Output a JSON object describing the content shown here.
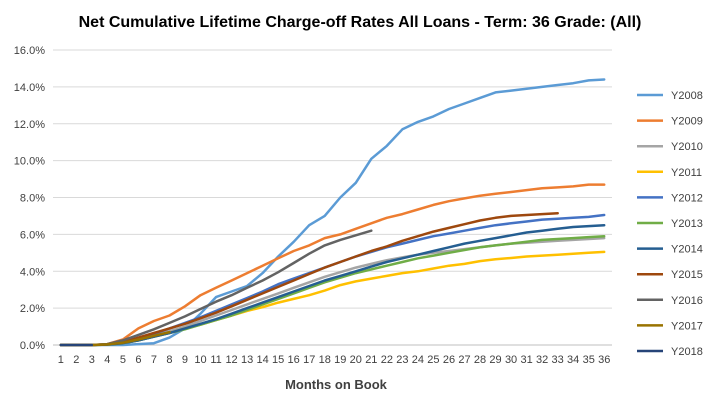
{
  "chart_data": {
    "type": "line",
    "title": "Net Cumulative Lifetime Charge-off Rates All Loans - Term: 36 Grade: (All)",
    "xlabel": "Months on Book",
    "ylabel": "",
    "x": [
      1,
      2,
      3,
      4,
      5,
      6,
      7,
      8,
      9,
      10,
      11,
      12,
      13,
      14,
      15,
      16,
      17,
      18,
      19,
      20,
      21,
      22,
      23,
      24,
      25,
      26,
      27,
      28,
      29,
      30,
      31,
      32,
      33,
      34,
      35,
      36
    ],
    "ylim": [
      0,
      16
    ],
    "yticks": [
      "0.0%",
      "2.0%",
      "4.0%",
      "6.0%",
      "8.0%",
      "10.0%",
      "12.0%",
      "14.0%",
      "16.0%"
    ],
    "grid": "horizontal",
    "legend_position": "right",
    "series": [
      {
        "name": "Y2008",
        "color": "#5b9bd5",
        "values": [
          0,
          0,
          0,
          0,
          0,
          0.05,
          0.1,
          0.4,
          0.9,
          1.7,
          2.6,
          2.9,
          3.2,
          3.9,
          4.8,
          5.6,
          6.5,
          7.0,
          8.0,
          8.8,
          10.1,
          10.8,
          11.7,
          12.1,
          12.4,
          12.8,
          13.1,
          13.4,
          13.7,
          13.8,
          13.9,
          14.0,
          14.1,
          14.2,
          14.35,
          14.4
        ]
      },
      {
        "name": "Y2009",
        "color": "#ed7d31",
        "values": [
          0,
          0,
          0,
          0.05,
          0.3,
          0.9,
          1.3,
          1.6,
          2.1,
          2.7,
          3.1,
          3.5,
          3.9,
          4.3,
          4.7,
          5.1,
          5.4,
          5.8,
          6.0,
          6.3,
          6.6,
          6.9,
          7.1,
          7.35,
          7.6,
          7.8,
          7.95,
          8.1,
          8.2,
          8.3,
          8.4,
          8.5,
          8.55,
          8.6,
          8.7,
          8.7
        ]
      },
      {
        "name": "Y2010",
        "color": "#a5a5a5",
        "values": [
          0,
          0,
          0,
          0.03,
          0.12,
          0.3,
          0.5,
          0.75,
          1.0,
          1.3,
          1.6,
          1.9,
          2.2,
          2.5,
          2.8,
          3.1,
          3.4,
          3.7,
          3.95,
          4.2,
          4.4,
          4.6,
          4.75,
          4.9,
          5.0,
          5.1,
          5.2,
          5.3,
          5.4,
          5.5,
          5.55,
          5.6,
          5.65,
          5.7,
          5.75,
          5.8
        ]
      },
      {
        "name": "Y2011",
        "color": "#ffc000",
        "values": [
          0,
          0,
          0,
          0.02,
          0.1,
          0.25,
          0.45,
          0.65,
          0.9,
          1.1,
          1.35,
          1.6,
          1.85,
          2.05,
          2.3,
          2.5,
          2.7,
          2.95,
          3.25,
          3.45,
          3.6,
          3.75,
          3.9,
          4.0,
          4.15,
          4.3,
          4.4,
          4.55,
          4.65,
          4.72,
          4.8,
          4.85,
          4.9,
          4.95,
          5.0,
          5.05
        ]
      },
      {
        "name": "Y2012",
        "color": "#4472c4",
        "values": [
          0,
          0,
          0,
          0.03,
          0.15,
          0.35,
          0.6,
          0.9,
          1.2,
          1.5,
          1.85,
          2.2,
          2.55,
          2.9,
          3.3,
          3.6,
          3.9,
          4.2,
          4.5,
          4.8,
          5.05,
          5.3,
          5.5,
          5.7,
          5.9,
          6.05,
          6.2,
          6.35,
          6.5,
          6.6,
          6.7,
          6.8,
          6.85,
          6.9,
          6.95,
          7.05
        ]
      },
      {
        "name": "Y2013",
        "color": "#70ad47",
        "values": [
          0,
          0,
          0,
          0.02,
          0.1,
          0.25,
          0.45,
          0.65,
          0.85,
          1.1,
          1.35,
          1.6,
          1.9,
          2.2,
          2.5,
          2.8,
          3.1,
          3.4,
          3.65,
          3.9,
          4.1,
          4.3,
          4.5,
          4.7,
          4.85,
          5.0,
          5.15,
          5.3,
          5.4,
          5.5,
          5.6,
          5.7,
          5.75,
          5.8,
          5.85,
          5.9
        ]
      },
      {
        "name": "Y2014",
        "color": "#255e91",
        "values": [
          0,
          0,
          0,
          0.02,
          0.1,
          0.25,
          0.45,
          0.65,
          0.9,
          1.15,
          1.4,
          1.7,
          2.0,
          2.3,
          2.6,
          2.9,
          3.2,
          3.5,
          3.75,
          4.0,
          4.25,
          4.5,
          4.7,
          4.9,
          5.1,
          5.3,
          5.5,
          5.65,
          5.8,
          5.95,
          6.1,
          6.2,
          6.3,
          6.4,
          6.45,
          6.5
        ]
      },
      {
        "name": "Y2015",
        "color": "#9e480e",
        "values": [
          0,
          0,
          0,
          0.03,
          0.15,
          0.4,
          0.65,
          0.9,
          1.15,
          1.45,
          1.75,
          2.1,
          2.45,
          2.8,
          3.15,
          3.5,
          3.85,
          4.2,
          4.5,
          4.8,
          5.1,
          5.35,
          5.65,
          5.9,
          6.15,
          6.35,
          6.55,
          6.75,
          6.9,
          7.0,
          7.05,
          7.1,
          7.15,
          null,
          null,
          null
        ]
      },
      {
        "name": "Y2016",
        "color": "#636363",
        "values": [
          0,
          0,
          0,
          0.05,
          0.25,
          0.55,
          0.85,
          1.2,
          1.55,
          1.95,
          2.35,
          2.7,
          3.1,
          3.5,
          3.95,
          4.45,
          4.95,
          5.4,
          5.7,
          5.95,
          6.2,
          null,
          null,
          null,
          null,
          null,
          null,
          null,
          null,
          null,
          null,
          null,
          null,
          null,
          null,
          null
        ]
      },
      {
        "name": "Y2017",
        "color": "#997300",
        "values": [
          0,
          0,
          0,
          0.03,
          0.12,
          0.3,
          0.5,
          0.7,
          null,
          null,
          null,
          null,
          null,
          null,
          null,
          null,
          null,
          null,
          null,
          null,
          null,
          null,
          null,
          null,
          null,
          null,
          null,
          null,
          null,
          null,
          null,
          null,
          null,
          null,
          null,
          null
        ]
      },
      {
        "name": "Y2018",
        "color": "#264478",
        "values": [
          0,
          0,
          0,
          null,
          null,
          null,
          null,
          null,
          null,
          null,
          null,
          null,
          null,
          null,
          null,
          null,
          null,
          null,
          null,
          null,
          null,
          null,
          null,
          null,
          null,
          null,
          null,
          null,
          null,
          null,
          null,
          null,
          null,
          null,
          null,
          null
        ]
      }
    ]
  }
}
